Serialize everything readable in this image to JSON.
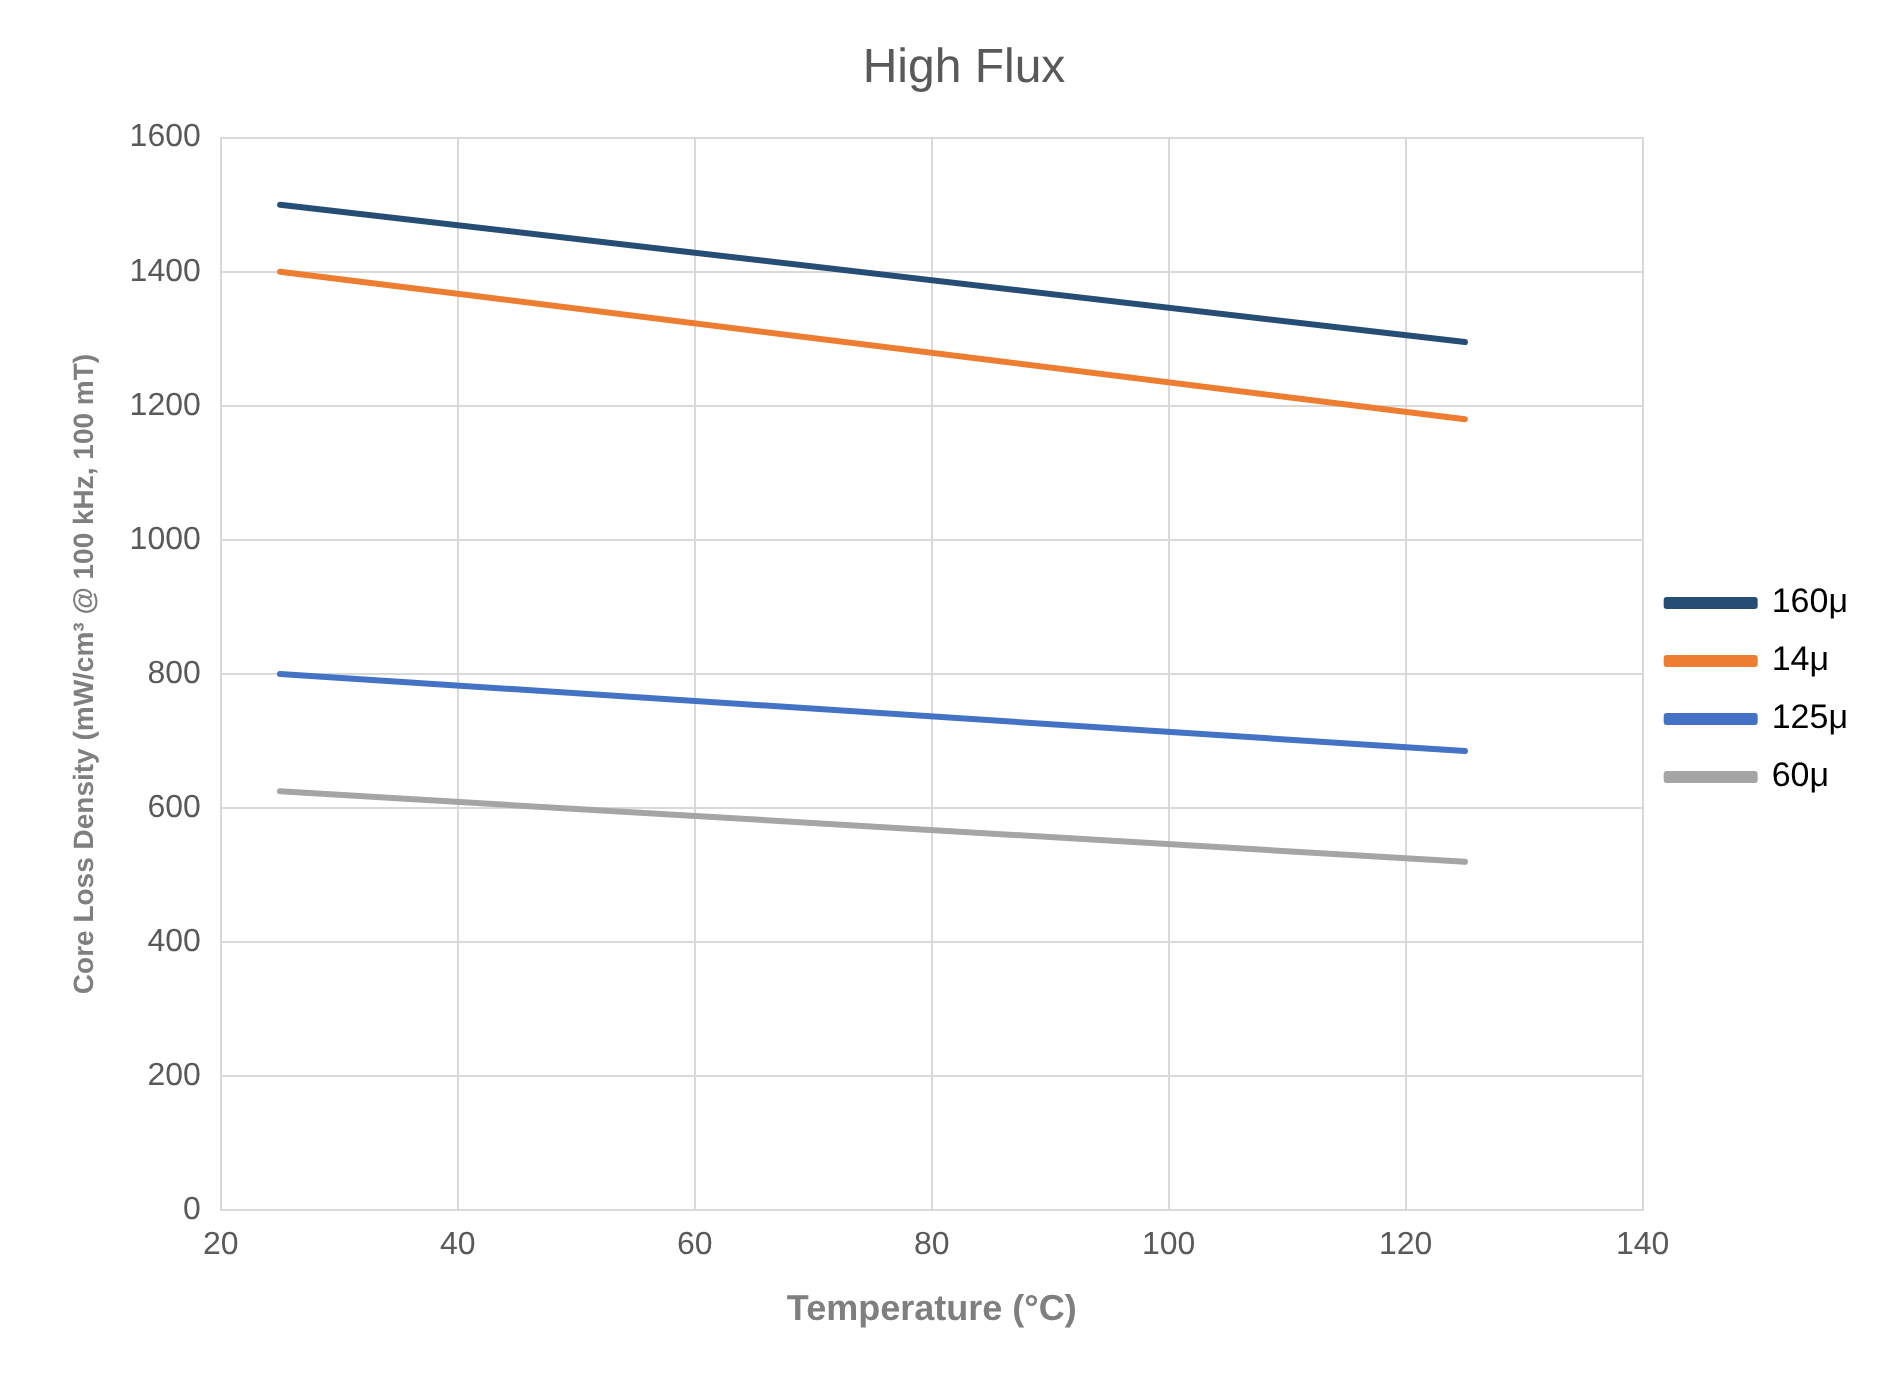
{
  "chart_data": {
    "type": "line",
    "title": "High Flux",
    "xlabel": "Temperature (°C)",
    "ylabel": "Core Loss Density (mW/cm³ @ 100 kHz, 100 mT)",
    "x": [
      25,
      125
    ],
    "series": [
      {
        "name": "160μ",
        "color": "#264d73",
        "values": [
          1500,
          1295
        ]
      },
      {
        "name": "14μ",
        "color": "#ed7d31",
        "values": [
          1400,
          1180
        ]
      },
      {
        "name": "125μ",
        "color": "#4472c4",
        "values": [
          800,
          685
        ]
      },
      {
        "name": "60μ",
        "color": "#a5a5a5",
        "values": [
          625,
          520
        ]
      }
    ],
    "xlim": [
      20,
      140
    ],
    "xticks": [
      20,
      40,
      60,
      80,
      100,
      120,
      140
    ],
    "ylim": [
      0,
      1600
    ],
    "yticks": [
      0,
      200,
      400,
      600,
      800,
      1000,
      1200,
      1400,
      1600
    ],
    "grid": true,
    "legend": "right",
    "marker": "none",
    "line_style": "solid"
  }
}
